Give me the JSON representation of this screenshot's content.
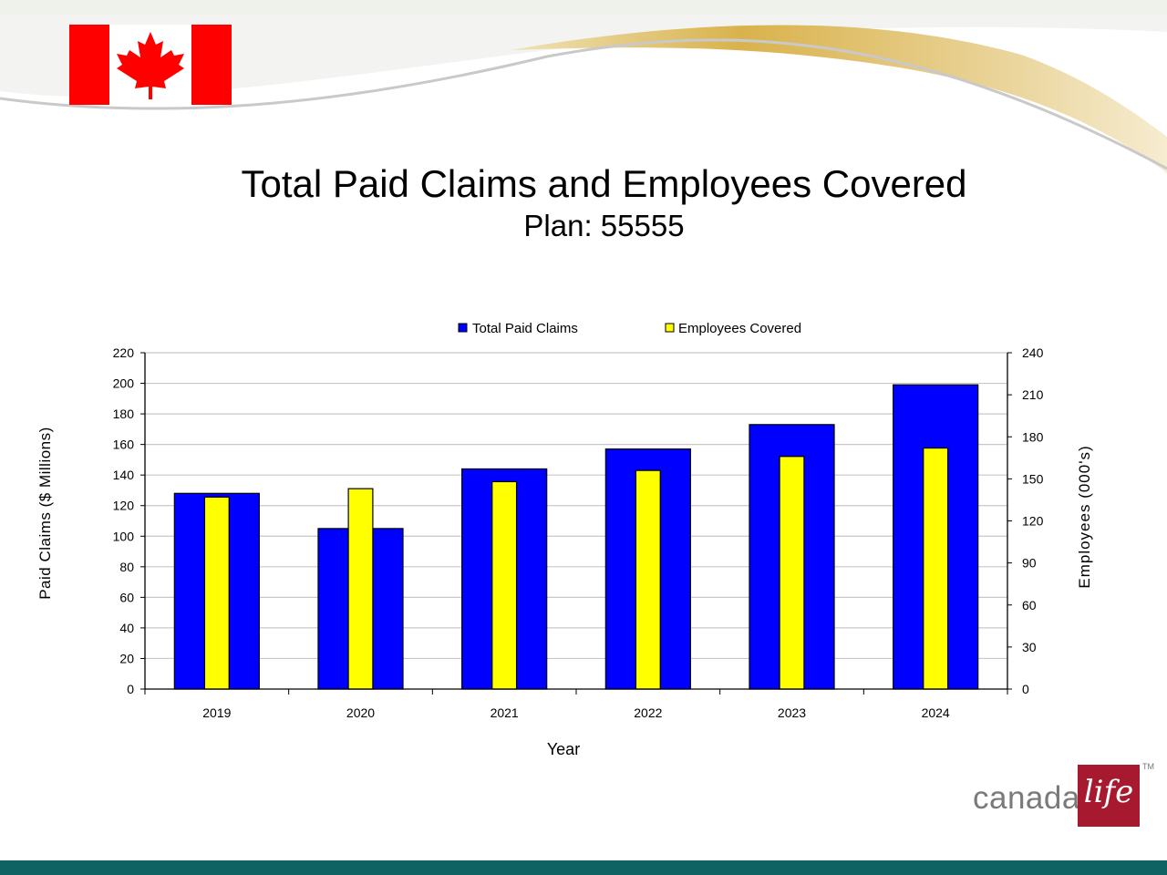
{
  "slide": {
    "title": "Total Paid Claims and Employees Covered",
    "subtitle": "Plan: 55555",
    "logo": {
      "text": "canada",
      "script": "life",
      "tm": "TM"
    },
    "colors": {
      "footer": "#0f6463",
      "swoosh_gold": "#d9b24c",
      "flag_red": "#ff0000"
    }
  },
  "chart_data": {
    "type": "bar",
    "categories": [
      "2019",
      "2020",
      "2021",
      "2022",
      "2023",
      "2024"
    ],
    "series": [
      {
        "name": "Total Paid Claims",
        "axis": "left",
        "color": "#0000ff",
        "values": [
          128,
          105,
          144,
          157,
          173,
          199
        ]
      },
      {
        "name": "Employees Covered",
        "axis": "right",
        "color": "#ffff00",
        "values": [
          137,
          143,
          148,
          156,
          166,
          172
        ]
      }
    ],
    "xlabel": "Year",
    "ylabel": "Paid Claims ($ Millions)",
    "y2label": "Employees (000's)",
    "ylim": [
      0,
      220
    ],
    "yticks": [
      0,
      20,
      40,
      60,
      80,
      100,
      120,
      140,
      160,
      180,
      200,
      220
    ],
    "y2lim": [
      0,
      240
    ],
    "y2ticks": [
      0,
      30,
      60,
      90,
      120,
      150,
      180,
      210,
      240
    ],
    "grid": true,
    "legend_position": "top-center"
  }
}
